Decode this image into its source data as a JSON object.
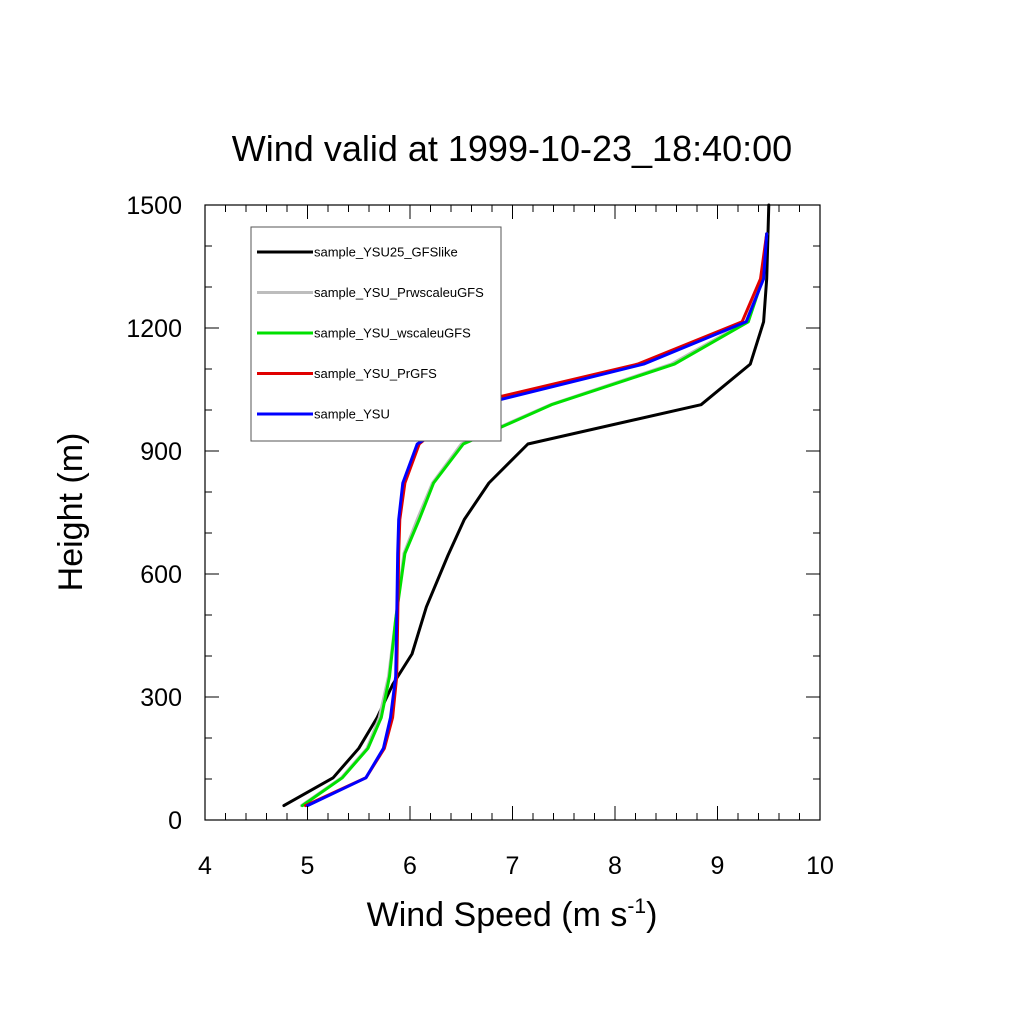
{
  "chart_data": {
    "type": "line",
    "title": "Wind valid at 1999-10-23_18:40:00",
    "xlabel": "Wind Speed (m s",
    "xlabel_superscript": "-1",
    "xlabel_suffix": ")",
    "ylabel": "Height (m)",
    "xlim": [
      4,
      10
    ],
    "ylim": [
      0,
      1500
    ],
    "x_ticks": [
      "4",
      "5",
      "6",
      "7",
      "8",
      "9",
      "10"
    ],
    "y_ticks": [
      "0",
      "300",
      "600",
      "900",
      "1200",
      "1500"
    ],
    "x_tick_values": [
      4,
      5,
      6,
      7,
      8,
      9,
      10
    ],
    "y_tick_values": [
      0,
      300,
      600,
      900,
      1200,
      1500
    ],
    "x_minor_step": 0.2,
    "y_minor_step": 100,
    "grid": false,
    "legend_position": "top-left",
    "series": [
      {
        "name": "sample_YSU25_GFSlike",
        "color": "#000000",
        "points": [
          [
            4.77,
            35
          ],
          [
            5.25,
            103
          ],
          [
            5.5,
            175
          ],
          [
            5.68,
            250
          ],
          [
            5.83,
            330
          ],
          [
            6.02,
            405
          ],
          [
            6.16,
            520
          ],
          [
            6.37,
            645
          ],
          [
            6.53,
            733
          ],
          [
            6.77,
            822
          ],
          [
            7.15,
            917
          ],
          [
            8.84,
            1013
          ],
          [
            9.32,
            1112
          ],
          [
            9.45,
            1215
          ],
          [
            9.48,
            1320
          ],
          [
            9.5,
            1500
          ]
        ]
      },
      {
        "name": "sample_YSU_PrwscaleuGFS",
        "color": "#bdbdbd",
        "points": [
          [
            4.94,
            35
          ],
          [
            5.33,
            103
          ],
          [
            5.58,
            175
          ],
          [
            5.7,
            250
          ],
          [
            5.79,
            350
          ],
          [
            5.86,
            490
          ],
          [
            5.94,
            650
          ],
          [
            6.07,
            733
          ],
          [
            6.22,
            822
          ],
          [
            6.5,
            917
          ],
          [
            7.37,
            1013
          ],
          [
            8.55,
            1112
          ],
          [
            9.28,
            1215
          ],
          [
            9.43,
            1320
          ],
          [
            9.48,
            1430
          ]
        ]
      },
      {
        "name": "sample_YSU_wscaleuGFS",
        "color": "#00e000",
        "points": [
          [
            4.95,
            35
          ],
          [
            5.34,
            103
          ],
          [
            5.59,
            175
          ],
          [
            5.72,
            250
          ],
          [
            5.8,
            350
          ],
          [
            5.86,
            490
          ],
          [
            5.95,
            650
          ],
          [
            6.09,
            733
          ],
          [
            6.23,
            822
          ],
          [
            6.52,
            917
          ],
          [
            7.38,
            1013
          ],
          [
            8.58,
            1112
          ],
          [
            9.3,
            1215
          ],
          [
            9.44,
            1320
          ],
          [
            9.48,
            1430
          ]
        ]
      },
      {
        "name": "sample_YSU_PrGFS",
        "color": "#e00000",
        "points": [
          [
            4.98,
            35
          ],
          [
            5.57,
            103
          ],
          [
            5.75,
            175
          ],
          [
            5.83,
            250
          ],
          [
            5.87,
            350
          ],
          [
            5.88,
            490
          ],
          [
            5.89,
            650
          ],
          [
            5.9,
            733
          ],
          [
            5.95,
            822
          ],
          [
            6.09,
            917
          ],
          [
            6.55,
            1013
          ],
          [
            8.22,
            1112
          ],
          [
            9.24,
            1215
          ],
          [
            9.42,
            1320
          ],
          [
            9.48,
            1430
          ]
        ]
      },
      {
        "name": "sample_YSU",
        "color": "#0000ff",
        "points": [
          [
            5.0,
            35
          ],
          [
            5.57,
            103
          ],
          [
            5.74,
            175
          ],
          [
            5.81,
            250
          ],
          [
            5.86,
            350
          ],
          [
            5.87,
            490
          ],
          [
            5.88,
            650
          ],
          [
            5.89,
            733
          ],
          [
            5.93,
            822
          ],
          [
            6.07,
            917
          ],
          [
            6.68,
            1013
          ],
          [
            8.28,
            1112
          ],
          [
            9.28,
            1215
          ],
          [
            9.45,
            1320
          ],
          [
            9.48,
            1430
          ]
        ]
      }
    ]
  }
}
